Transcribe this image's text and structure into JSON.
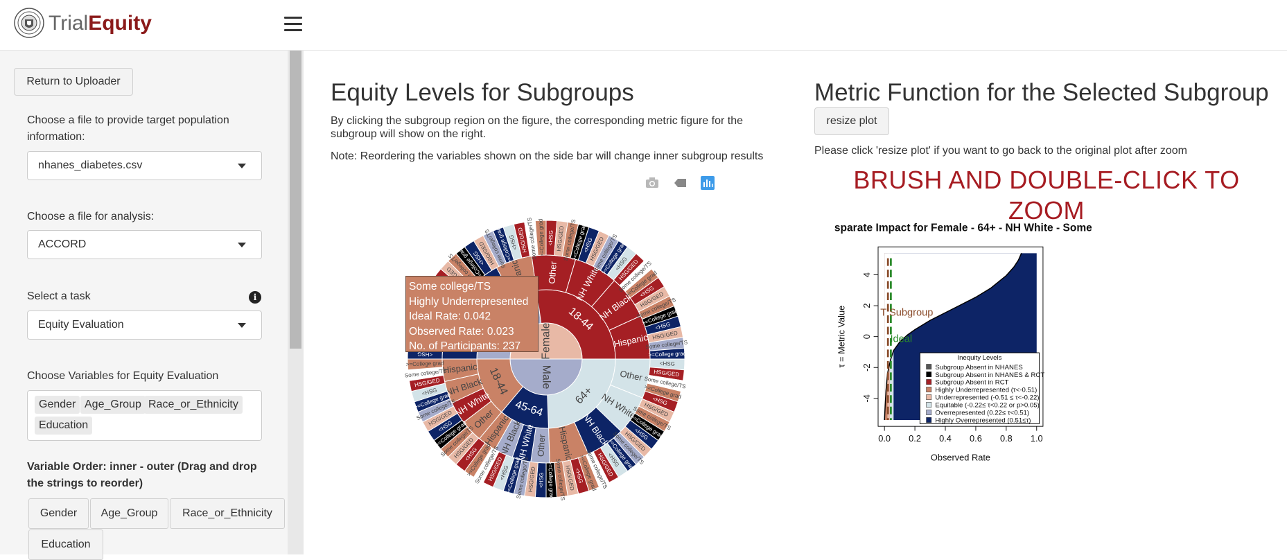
{
  "app": {
    "brand_part1": "Trial",
    "brand_part2": "Equity"
  },
  "sidebar": {
    "return_button": "Return to Uploader",
    "target_file_label": "Choose a file to provide target population information:",
    "target_file_value": "nhanes_diabetes.csv",
    "analysis_file_label": "Choose a file for analysis:",
    "analysis_file_value": "ACCORD",
    "task_label": "Select a task",
    "task_value": "Equity Evaluation",
    "variables_label": "Choose Variables for Equity Evaluation",
    "variables": [
      "Gender",
      "Age_Group",
      "Race_or_Ethnicity",
      "Education"
    ],
    "order_label": "Variable Order: inner - outer (Drag and drop the strings to reorder)",
    "order_items": [
      "Gender",
      "Age_Group",
      "Race_or_Ethnicity",
      "Education"
    ]
  },
  "left_panel": {
    "title": "Equity Levels for Subgroups",
    "desc": "By clicking the subgroup region on the figure, the corresponding metric figure for the subgroup will show on the right.",
    "note": "Note: Reordering the variables shown on the side bar will change inner subgroup results"
  },
  "sunburst": {
    "inner": [
      {
        "label": "Female",
        "color": "#e8b9a6"
      },
      {
        "label": "Male",
        "color": "#a5accb"
      }
    ],
    "ring2": [
      {
        "label": "45-64",
        "color": "#a5accb"
      },
      {
        "label": "18-44",
        "color": "#a51f24"
      },
      {
        "label": "64+",
        "color": "#d3e3e8"
      },
      {
        "label": "45-64",
        "color": "#0d2466"
      },
      {
        "label": "18-44",
        "color": "#c98266"
      }
    ],
    "ring3": [
      {
        "label": "Other",
        "color": "#0d2466"
      },
      {
        "label": "NH White",
        "color": "#a5accb"
      },
      {
        "label": "NH Black",
        "color": "#0d2466"
      },
      {
        "label": "Hispanic",
        "color": "#c98266"
      },
      {
        "label": "Other",
        "color": "#a51f24"
      },
      {
        "label": "NH White",
        "color": "#a51f24"
      },
      {
        "label": "NH Black",
        "color": "#a51f24"
      },
      {
        "label": "Hispanic",
        "color": "#a51f24"
      },
      {
        "label": "Other",
        "color": "#d3e3e8"
      },
      {
        "label": "NH White",
        "color": "#d3e3e8"
      },
      {
        "label": "NH Black",
        "color": "#0d2466"
      },
      {
        "label": "Hispanic",
        "color": "#c98266"
      },
      {
        "label": "Other",
        "color": "#a5accb"
      },
      {
        "label": "NH White",
        "color": "#0d2466"
      },
      {
        "label": "NH Black",
        "color": "#a5accb"
      },
      {
        "label": "Hispanic",
        "color": "#c98266"
      },
      {
        "label": "Other",
        "color": "#c98266"
      },
      {
        "label": "NH White",
        "color": "#a51f24"
      },
      {
        "label": "NH Black",
        "color": "#c98266"
      },
      {
        "label": "Hispanic",
        "color": "#c98266"
      }
    ],
    "edu_labels": [
      "<HSG",
      "HSG/GED",
      "Some college/TS",
      ">=College grad"
    ],
    "edu_colors": [
      "#0d2466",
      "#a51f24",
      "#c98266",
      "#e8b9a6",
      "#a5accb",
      "#d3e3e8",
      "#ffffff",
      "#000000",
      "#e8b9a6",
      "#0d2466",
      "#a51f24",
      "#c98266"
    ]
  },
  "tooltip": {
    "line1": "Some college/TS",
    "line2": "Highly Underrepresented",
    "line3": "Ideal Rate: 0.042",
    "line4": "Observed Rate: 0.023",
    "line5": "No. of Participants: 237"
  },
  "right_panel": {
    "title": "Metric Function for the Selected Subgroup",
    "resize_button": "resize plot",
    "resize_hint": "Please click 'resize plot' if you want to go back to the original plot after zoom",
    "zoom_hint": "BRUSH AND DOUBLE-CLICK TO ZOOM"
  },
  "chart_data": {
    "type": "area",
    "title": "sparate Impact for Female - 64+ - NH White - Some",
    "xlabel": "Observed Rate",
    "ylabel": "τ = Metric Value",
    "xlim": [
      0,
      1
    ],
    "ylim": [
      -5.4,
      5.4
    ],
    "xticks": [
      "0.0",
      "0.2",
      "0.4",
      "0.6",
      "0.8",
      "1.0"
    ],
    "yticks": [
      "-4",
      "-2",
      "0",
      "2",
      "4"
    ],
    "x": [
      0.0,
      0.01,
      0.02,
      0.04,
      0.06,
      0.1,
      0.15,
      0.2,
      0.3,
      0.4,
      0.5,
      0.6,
      0.7,
      0.8,
      0.85,
      0.88,
      0.9
    ],
    "y": [
      -5.4,
      -3.5,
      -2.4,
      -1.5,
      -0.9,
      -0.35,
      0.1,
      0.45,
      1.05,
      1.55,
      2.05,
      2.55,
      3.15,
      3.95,
      4.5,
      4.95,
      5.4
    ],
    "annotations": [
      {
        "label": "T Subgroup",
        "x": 0.023,
        "y": 1.6
      },
      {
        "label": "Ideal",
        "x": 0.042,
        "y": -0.1
      }
    ],
    "legend_title": "Inequity Levels",
    "legend_position": "bottom-right",
    "legend": [
      {
        "label": "Subgroup Absent in NHANES",
        "color": "#555555"
      },
      {
        "label": "Subgroup Absent in NHANES & RCT",
        "color": "#000000"
      },
      {
        "label": "Subgroup Absent in RCT",
        "color": "#a51f24"
      },
      {
        "label": "Highly Underrepresented (τ<-0.51)",
        "color": "#c98266"
      },
      {
        "label": "Underrepresented (-0.51 ≤ τ<-0.22)",
        "color": "#e8b9a6"
      },
      {
        "label": "Equitable (-0.22≤ τ<0.22 or p>0.05)",
        "color": "#d3e3e8"
      },
      {
        "label": "Overrepresented (0.22≤ τ<0.51)",
        "color": "#a5accb"
      },
      {
        "label": "Highly Overrepresented (0.51≤τ)",
        "color": "#0d2466"
      }
    ]
  }
}
